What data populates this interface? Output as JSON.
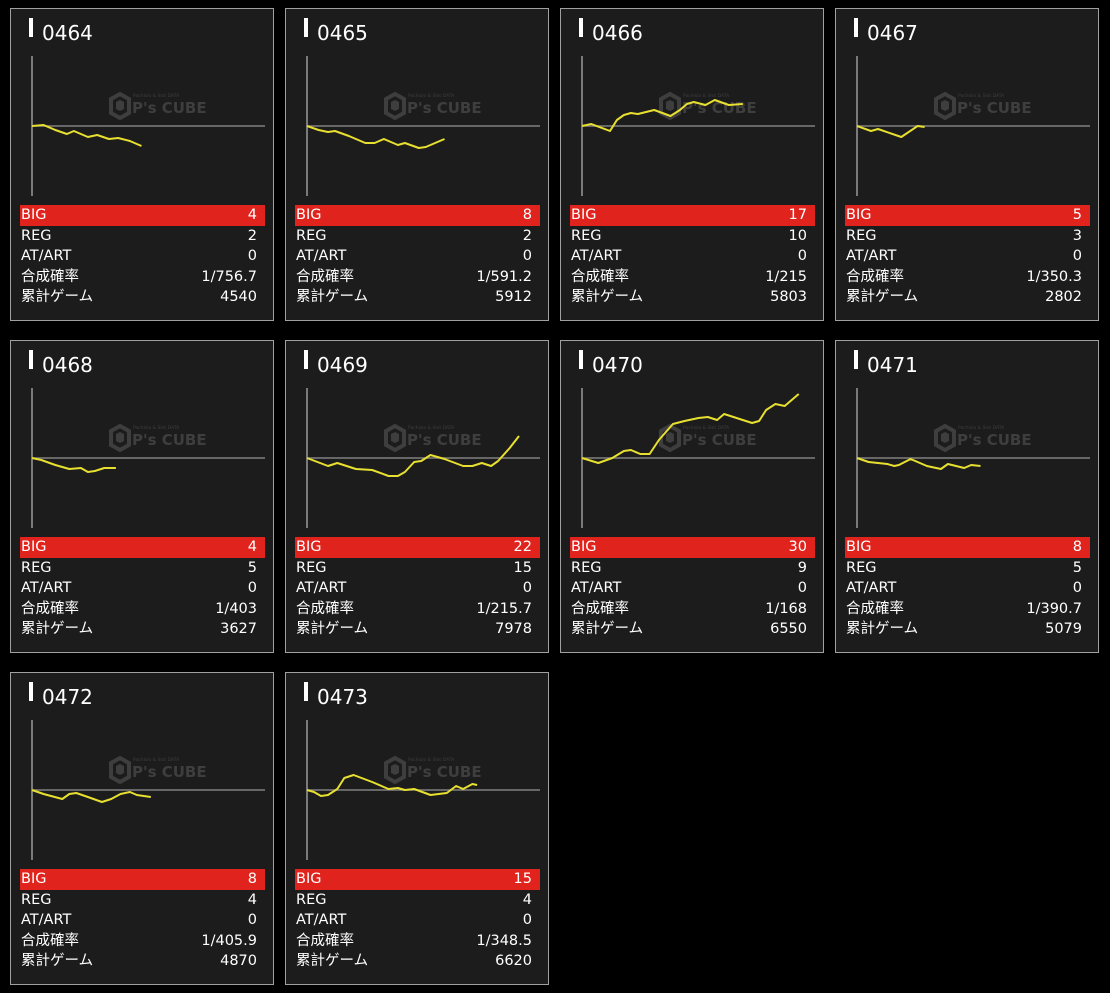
{
  "colors": {
    "background": "#000000",
    "card": "#1c1c1c",
    "big_bar": "#e0231c",
    "line": "#e8e030",
    "axis": "#9a9a9a"
  },
  "watermark": {
    "logo_text": "P's CUBE",
    "small_text_top": "Pachislo & Slot DATA"
  },
  "labels": {
    "big": "BIG",
    "reg": "REG",
    "at": "AT/ART",
    "prob": "合成確率",
    "games": "累計ゲーム"
  },
  "machines": [
    {
      "id": "0464",
      "big": "4",
      "reg": "2",
      "at": "0",
      "prob": "1/756.7",
      "games": "4540",
      "graph": [
        [
          0,
          0
        ],
        [
          5,
          1
        ],
        [
          10,
          -4
        ],
        [
          15,
          -8
        ],
        [
          18,
          -5
        ],
        [
          24,
          -11
        ],
        [
          28,
          -9
        ],
        [
          33,
          -13
        ],
        [
          37,
          -12
        ],
        [
          42,
          -15
        ],
        [
          47,
          -20
        ]
      ]
    },
    {
      "id": "0465",
      "big": "8",
      "reg": "2",
      "at": "0",
      "prob": "1/591.2",
      "games": "5912",
      "graph": [
        [
          0,
          0
        ],
        [
          5,
          -4
        ],
        [
          9,
          -6
        ],
        [
          12,
          -5
        ],
        [
          18,
          -10
        ],
        [
          25,
          -17
        ],
        [
          29,
          -17
        ],
        [
          33,
          -13
        ],
        [
          39,
          -19
        ],
        [
          42,
          -17
        ],
        [
          48,
          -22
        ],
        [
          51,
          -21
        ],
        [
          59,
          -13
        ]
      ]
    },
    {
      "id": "0466",
      "big": "17",
      "reg": "10",
      "at": "0",
      "prob": "1/215",
      "games": "5803",
      "graph": [
        [
          0,
          0
        ],
        [
          4,
          2
        ],
        [
          12,
          -5
        ],
        [
          15,
          6
        ],
        [
          18,
          11
        ],
        [
          21,
          13
        ],
        [
          24,
          12
        ],
        [
          31,
          16
        ],
        [
          38,
          10
        ],
        [
          42,
          16
        ],
        [
          45,
          22
        ],
        [
          48,
          24
        ],
        [
          53,
          21
        ],
        [
          57,
          26
        ],
        [
          63,
          21
        ],
        [
          69,
          22
        ]
      ]
    },
    {
      "id": "0467",
      "big": "5",
      "reg": "3",
      "at": "0",
      "prob": "1/350.3",
      "games": "2802",
      "graph": [
        [
          0,
          0
        ],
        [
          6,
          -5
        ],
        [
          9,
          -3
        ],
        [
          19,
          -11
        ],
        [
          26,
          0
        ],
        [
          29,
          -1
        ]
      ]
    },
    {
      "id": "0468",
      "big": "4",
      "reg": "5",
      "at": "0",
      "prob": "1/403",
      "games": "3627",
      "graph": [
        [
          0,
          0
        ],
        [
          4,
          -2
        ],
        [
          10,
          -7
        ],
        [
          16,
          -11
        ],
        [
          21,
          -10
        ],
        [
          24,
          -14
        ],
        [
          27,
          -13
        ],
        [
          31,
          -10
        ],
        [
          36,
          -10
        ]
      ]
    },
    {
      "id": "0469",
      "big": "22",
      "reg": "15",
      "at": "0",
      "prob": "1/215.7",
      "games": "7978",
      "graph": [
        [
          0,
          0
        ],
        [
          9,
          -8
        ],
        [
          13,
          -5
        ],
        [
          21,
          -11
        ],
        [
          28,
          -12
        ],
        [
          35,
          -18
        ],
        [
          39,
          -18
        ],
        [
          42,
          -14
        ],
        [
          46,
          -4
        ],
        [
          49,
          -3
        ],
        [
          53,
          3
        ],
        [
          59,
          -1
        ],
        [
          67,
          -8
        ],
        [
          71,
          -8
        ],
        [
          75,
          -5
        ],
        [
          79,
          -8
        ],
        [
          82,
          -3
        ],
        [
          87,
          10
        ],
        [
          91,
          22
        ]
      ]
    },
    {
      "id": "0470",
      "big": "30",
      "reg": "9",
      "at": "0",
      "prob": "1/168",
      "games": "6550",
      "graph": [
        [
          0,
          0
        ],
        [
          7,
          -5
        ],
        [
          13,
          0
        ],
        [
          18,
          7
        ],
        [
          21,
          8
        ],
        [
          25,
          4
        ],
        [
          29,
          4
        ],
        [
          33,
          18
        ],
        [
          39,
          34
        ],
        [
          44,
          37
        ],
        [
          50,
          40
        ],
        [
          54,
          41
        ],
        [
          58,
          38
        ],
        [
          61,
          44
        ],
        [
          73,
          35
        ],
        [
          76,
          37
        ],
        [
          79,
          48
        ],
        [
          83,
          54
        ],
        [
          87,
          52
        ],
        [
          93,
          64
        ]
      ]
    },
    {
      "id": "0471",
      "big": "8",
      "reg": "5",
      "at": "0",
      "prob": "1/390.7",
      "games": "5079",
      "graph": [
        [
          0,
          0
        ],
        [
          5,
          -4
        ],
        [
          9,
          -5
        ],
        [
          13,
          -6
        ],
        [
          16,
          -8
        ],
        [
          18,
          -7
        ],
        [
          23,
          -1
        ],
        [
          26,
          -4
        ],
        [
          30,
          -8
        ],
        [
          36,
          -11
        ],
        [
          39,
          -6
        ],
        [
          46,
          -10
        ],
        [
          49,
          -7
        ],
        [
          53,
          -8
        ]
      ]
    },
    {
      "id": "0472",
      "big": "8",
      "reg": "4",
      "at": "0",
      "prob": "1/405.9",
      "games": "4870",
      "graph": [
        [
          0,
          0
        ],
        [
          5,
          -4
        ],
        [
          13,
          -9
        ],
        [
          16,
          -4
        ],
        [
          19,
          -3
        ],
        [
          24,
          -7
        ],
        [
          30,
          -12
        ],
        [
          34,
          -9
        ],
        [
          38,
          -4
        ],
        [
          42,
          -2
        ],
        [
          45,
          -5
        ],
        [
          51,
          -7
        ]
      ]
    },
    {
      "id": "0473",
      "big": "15",
      "reg": "4",
      "at": "0",
      "prob": "1/348.5",
      "games": "6620",
      "graph": [
        [
          0,
          0
        ],
        [
          3,
          -2
        ],
        [
          6,
          -6
        ],
        [
          9,
          -5
        ],
        [
          13,
          1
        ],
        [
          16,
          12
        ],
        [
          20,
          15
        ],
        [
          28,
          8
        ],
        [
          35,
          1
        ],
        [
          39,
          2
        ],
        [
          42,
          0
        ],
        [
          46,
          1
        ],
        [
          53,
          -5
        ],
        [
          60,
          -3
        ],
        [
          64,
          4
        ],
        [
          67,
          1
        ],
        [
          71,
          6
        ],
        [
          73,
          5
        ]
      ]
    }
  ]
}
